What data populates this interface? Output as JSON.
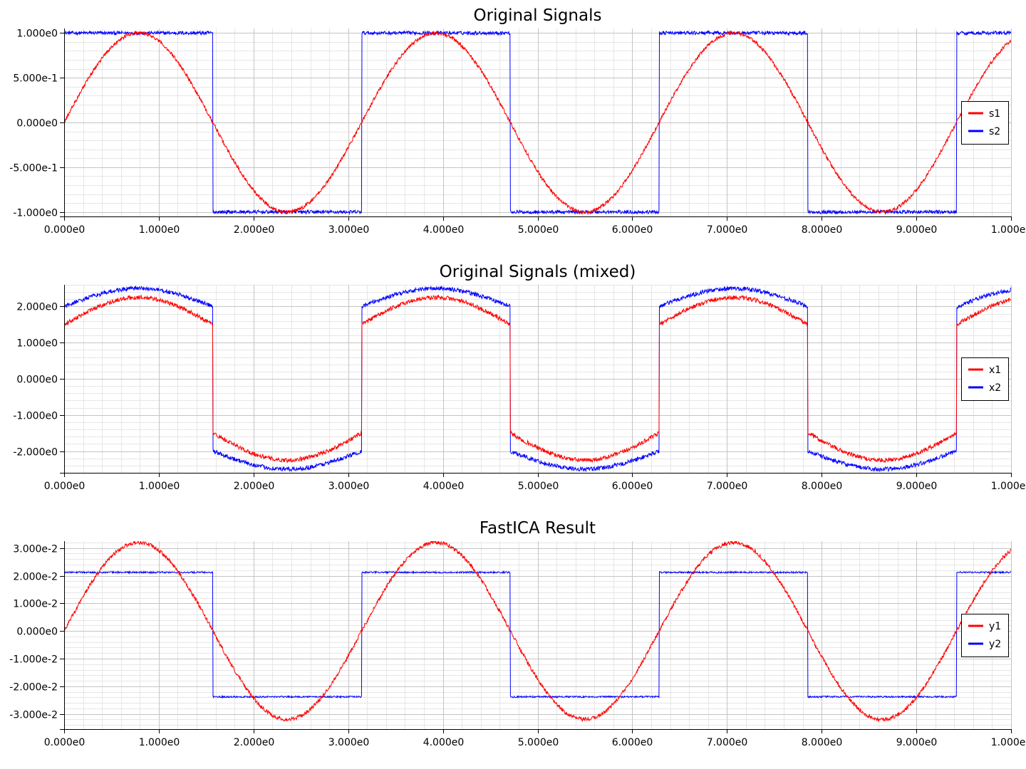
{
  "chart_data": [
    {
      "type": "line",
      "title": "Original Signals",
      "xlabel": "",
      "ylabel": "",
      "xlim": [
        0,
        10
      ],
      "ylim": [
        -1.05,
        1.05
      ],
      "xticks": [
        0,
        1,
        2,
        3,
        4,
        5,
        6,
        7,
        8,
        9,
        10
      ],
      "xtick_labels": [
        "0.000e0",
        "1.000e0",
        "2.000e0",
        "3.000e0",
        "4.000e0",
        "5.000e0",
        "6.000e0",
        "7.000e0",
        "8.000e0",
        "9.000e0",
        "1.000e1"
      ],
      "yticks": [
        1.0,
        0.5,
        0.0,
        -0.5,
        -1.0
      ],
      "ytick_labels": [
        "1.000e0",
        "5.000e-1",
        "0.000e0",
        "-5.000e-1",
        "-1.000e0"
      ],
      "grid": true,
      "legend_position": "right",
      "series": [
        {
          "name": "s1",
          "color": "#ff0000",
          "signal": "sine",
          "amplitude": 1.0,
          "angular_frequency": 2,
          "noise": 0.02
        },
        {
          "name": "s2",
          "color": "#0000ff",
          "signal": "square",
          "amplitude": 1.0,
          "angular_frequency": 2,
          "noise": 0.02
        }
      ]
    },
    {
      "type": "line",
      "title": "Original Signals (mixed)",
      "xlabel": "",
      "ylabel": "",
      "xlim": [
        0,
        10
      ],
      "ylim": [
        -2.6,
        2.6
      ],
      "xticks": [
        0,
        1,
        2,
        3,
        4,
        5,
        6,
        7,
        8,
        9,
        10
      ],
      "xtick_labels": [
        "0.000e0",
        "1.000e0",
        "2.000e0",
        "3.000e0",
        "4.000e0",
        "5.000e0",
        "6.000e0",
        "7.000e0",
        "8.000e0",
        "9.000e0",
        "1.000e1"
      ],
      "yticks": [
        2,
        1,
        0,
        -1,
        -2
      ],
      "ytick_labels": [
        "2.000e0",
        "1.000e0",
        "0.000e0",
        "-1.000e0",
        "-2.000e0"
      ],
      "grid": true,
      "legend_position": "right",
      "series": [
        {
          "name": "x1",
          "color": "#ff0000",
          "mixing": [
            0.75,
            1.5
          ],
          "noise": 0.02
        },
        {
          "name": "x2",
          "color": "#0000ff",
          "mixing": [
            0.5,
            2.0
          ],
          "noise": 0.02
        }
      ]
    },
    {
      "type": "line",
      "title": "FastICA Result",
      "xlabel": "",
      "ylabel": "",
      "xlim": [
        0,
        10
      ],
      "ylim": [
        -0.0355,
        0.0325
      ],
      "xticks": [
        0,
        1,
        2,
        3,
        4,
        5,
        6,
        7,
        8,
        9,
        10
      ],
      "xtick_labels": [
        "0.000e0",
        "1.000e0",
        "2.000e0",
        "3.000e0",
        "4.000e0",
        "5.000e0",
        "6.000e0",
        "7.000e0",
        "8.000e0",
        "9.000e0",
        "1.000e1"
      ],
      "yticks": [
        0.03,
        0.02,
        0.01,
        0.0,
        -0.01,
        -0.02,
        -0.03
      ],
      "ytick_labels": [
        "3.000e-2",
        "2.000e-2",
        "1.000e-2",
        "0.000e0",
        "-1.000e-2",
        "-2.000e-2",
        "-3.000e-2"
      ],
      "grid": true,
      "legend_position": "right",
      "series": [
        {
          "name": "y1",
          "color": "#ff0000",
          "signal": "sine",
          "amplitude": 0.032,
          "angular_frequency": 2,
          "noise": 0.0007
        },
        {
          "name": "y2",
          "color": "#0000ff",
          "signal": "square",
          "high": 0.0212,
          "low": -0.0238,
          "angular_frequency": 2,
          "noise": 0.0003
        }
      ]
    }
  ]
}
